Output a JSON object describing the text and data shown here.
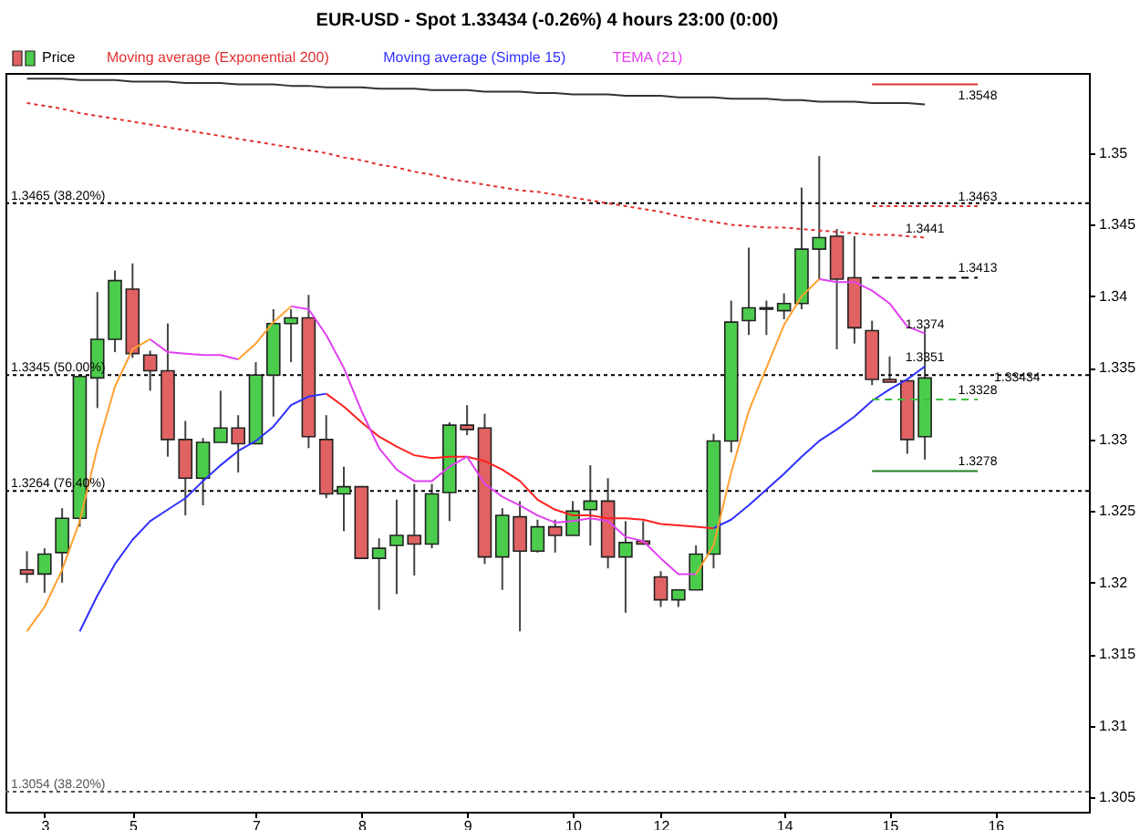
{
  "chart_data": {
    "type": "candlestick",
    "title": "EUR-USD - Spot    1.33434 (-0.26%)    4 hours  23:00 (0:00)",
    "categories": [
      null,
      "3",
      null,
      null,
      null,
      null,
      "5",
      null,
      null,
      null,
      null,
      null,
      null,
      "7",
      null,
      null,
      null,
      null,
      null,
      "8",
      null,
      null,
      null,
      null,
      null,
      "9",
      null,
      null,
      null,
      null,
      null,
      "10",
      null,
      null,
      null,
      null,
      "12",
      null,
      null,
      null,
      null,
      null,
      null,
      "14",
      null,
      null,
      null,
      null,
      null,
      "15",
      null,
      null,
      null,
      null,
      null,
      "16",
      null,
      null,
      null,
      null
    ],
    "ylim": [
      1.304,
      1.3556
    ],
    "yticks": [
      1.305,
      1.31,
      1.315,
      1.32,
      1.325,
      1.33,
      1.335,
      1.34,
      1.345,
      1.35
    ],
    "grid": false,
    "legend": "top left",
    "series": [
      {
        "name": "Price",
        "ohlc": [
          [
            1.3209,
            1.3222,
            1.32,
            1.3206
          ],
          [
            1.3206,
            1.3224,
            1.3193,
            1.322
          ],
          [
            1.3221,
            1.3252,
            1.32,
            1.3245
          ],
          [
            1.3245,
            1.3344,
            1.3239,
            1.3344
          ],
          [
            1.3343,
            1.3403,
            1.3322,
            1.337
          ],
          [
            1.337,
            1.3418,
            1.3361,
            1.3411
          ],
          [
            1.3405,
            1.3423,
            1.3357,
            1.336
          ],
          [
            1.3359,
            1.3362,
            1.3334,
            1.3348
          ],
          [
            1.3348,
            1.3381,
            1.3288,
            1.33
          ],
          [
            1.33,
            1.3313,
            1.3247,
            1.3273
          ],
          [
            1.3273,
            1.3301,
            1.3254,
            1.3298
          ],
          [
            1.3298,
            1.3334,
            1.3298,
            1.3308
          ],
          [
            1.3308,
            1.3317,
            1.3277,
            1.3297
          ],
          [
            1.3297,
            1.3354,
            1.3297,
            1.3345
          ],
          [
            1.3345,
            1.3391,
            1.3316,
            1.3381
          ],
          [
            1.3381,
            1.3391,
            1.3354,
            1.3385
          ],
          [
            1.3385,
            1.3401,
            1.3294,
            1.3302
          ],
          [
            1.33,
            1.3317,
            1.3259,
            1.3262
          ],
          [
            1.3262,
            1.3281,
            1.3236,
            1.3267
          ],
          [
            1.3267,
            1.3267,
            1.3217,
            1.3217
          ],
          [
            1.3217,
            1.3231,
            1.3181,
            1.3224
          ],
          [
            1.3226,
            1.3258,
            1.3192,
            1.3233
          ],
          [
            1.3233,
            1.3269,
            1.3205,
            1.3227
          ],
          [
            1.3227,
            1.3269,
            1.3224,
            1.3262
          ],
          [
            1.3263,
            1.3312,
            1.3243,
            1.331
          ],
          [
            1.331,
            1.3324,
            1.3303,
            1.3307
          ],
          [
            1.3308,
            1.3318,
            1.3213,
            1.3218
          ],
          [
            1.3218,
            1.3252,
            1.3195,
            1.3247
          ],
          [
            1.3246,
            1.3257,
            1.3166,
            1.3222
          ],
          [
            1.3222,
            1.3244,
            1.3221,
            1.3239
          ],
          [
            1.3239,
            1.3244,
            1.3221,
            1.3233
          ],
          [
            1.3233,
            1.3257,
            1.3233,
            1.325
          ],
          [
            1.3251,
            1.3282,
            1.3226,
            1.3257
          ],
          [
            1.3257,
            1.3273,
            1.321,
            1.3218
          ],
          [
            1.3218,
            1.3243,
            1.3179,
            1.3228
          ],
          [
            1.3229,
            1.3243,
            1.3227,
            1.3227
          ],
          [
            1.3204,
            1.3208,
            1.3183,
            1.3188
          ],
          [
            1.3188,
            1.3195,
            1.3183,
            1.3195
          ],
          [
            1.3195,
            1.3226,
            1.3195,
            1.322
          ],
          [
            1.322,
            1.3304,
            1.321,
            1.3299
          ],
          [
            1.3299,
            1.3397,
            1.3291,
            1.3382
          ],
          [
            1.3383,
            1.3434,
            1.3373,
            1.3392
          ],
          [
            1.3392,
            1.3397,
            1.3373,
            1.3391
          ],
          [
            1.339,
            1.3402,
            1.3384,
            1.3395
          ],
          [
            1.3395,
            1.3476,
            1.3391,
            1.3433
          ],
          [
            1.3433,
            1.3498,
            1.3412,
            1.3441
          ],
          [
            1.3442,
            1.3447,
            1.3363,
            1.3412
          ],
          [
            1.3413,
            1.3442,
            1.3367,
            1.3378
          ],
          [
            1.3376,
            1.3383,
            1.3338,
            1.3342
          ],
          [
            1.3342,
            1.3358,
            1.334,
            1.334
          ],
          [
            1.3341,
            1.3341,
            1.329,
            1.33
          ],
          [
            1.3302,
            1.3378,
            1.3286,
            1.3343
          ],
          null,
          null,
          null,
          null,
          null,
          null,
          null,
          null
        ],
        "colors": [
          "#e06262",
          "#4ccc4c",
          "#4ccc4c",
          "#4ccc4c",
          "#4ccc4c",
          "#4ccc4c",
          "#e06262",
          "#e06262",
          "#e06262",
          "#e06262",
          "#4ccc4c",
          "#4ccc4c",
          "#e06262",
          "#4ccc4c",
          "#4ccc4c",
          "#4ccc4c",
          "#e06262",
          "#e06262",
          "#4ccc4c",
          "#e06262",
          "#4ccc4c",
          "#4ccc4c",
          "#e06262",
          "#4ccc4c",
          "#4ccc4c",
          "#e06262",
          "#e06262",
          "#4ccc4c",
          "#e06262",
          "#4ccc4c",
          "#e06262",
          "#4ccc4c",
          "#4ccc4c",
          "#e06262",
          "#4ccc4c",
          "#e06262",
          "#e06262",
          "#4ccc4c",
          "#4ccc4c",
          "#4ccc4c",
          "#4ccc4c",
          "#4ccc4c",
          "#e06262",
          "#4ccc4c",
          "#4ccc4c",
          "#4ccc4c",
          "#e06262",
          "#e06262",
          "#e06262",
          "#e06262",
          "#e06262",
          "#4ccc4c",
          null,
          null,
          null,
          null,
          null,
          null,
          null,
          null
        ]
      },
      {
        "name": "Moving average (Exponential 200)",
        "type": "line",
        "color": "#e03030",
        "line_style": "dotted",
        "values": [
          1.3535,
          1.3533,
          1.3531,
          1.3528,
          1.3526,
          1.3524,
          1.3522,
          1.352,
          1.3518,
          1.3516,
          1.3514,
          1.3512,
          1.351,
          1.3508,
          1.3506,
          1.3504,
          1.3502,
          1.35,
          1.3497,
          1.3495,
          1.3492,
          1.349,
          1.3487,
          1.3485,
          1.3482,
          1.348,
          1.3478,
          1.3476,
          1.3474,
          1.3473,
          1.3471,
          1.3469,
          1.3467,
          1.3465,
          1.3463,
          1.3461,
          1.3459,
          1.3456,
          1.3454,
          1.3452,
          1.345,
          1.3449,
          1.3448,
          1.3448,
          1.3447,
          1.3446,
          1.3445,
          1.3444,
          1.3443,
          1.3443,
          1.3442,
          1.3441,
          null,
          null,
          null,
          null,
          null,
          null,
          null,
          null
        ]
      },
      {
        "name": "Moving average (Simple 15)",
        "type": "line",
        "color": "#3030ff",
        "values": [
          null,
          null,
          null,
          1.3166,
          1.3191,
          1.3213,
          1.323,
          1.3243,
          1.3251,
          1.3259,
          1.3271,
          1.3282,
          1.3292,
          1.3299,
          1.3309,
          1.3324,
          1.333,
          1.3332,
          null,
          null,
          null,
          null,
          null,
          null,
          null,
          null,
          null,
          null,
          null,
          null,
          null,
          null,
          null,
          null,
          null,
          null,
          null,
          null,
          null,
          1.3238,
          1.3244,
          1.3254,
          1.3265,
          1.3276,
          1.3288,
          1.3299,
          1.3307,
          1.3316,
          1.3327,
          1.3335,
          1.3342,
          1.3351,
          null,
          null,
          null,
          null,
          null,
          null,
          null,
          null
        ]
      },
      {
        "type": "line",
        "color": "#ff2020",
        "values": [
          null,
          null,
          null,
          null,
          null,
          null,
          null,
          null,
          null,
          null,
          null,
          null,
          null,
          null,
          null,
          null,
          null,
          1.3332,
          1.3323,
          1.3312,
          1.3302,
          1.3295,
          1.3289,
          1.3287,
          1.3288,
          1.3288,
          1.3285,
          1.3279,
          1.3271,
          1.3258,
          1.3251,
          1.3247,
          1.3247,
          1.3245,
          1.3245,
          1.3244,
          1.3241,
          1.324,
          1.3239,
          1.3238,
          null,
          null,
          null,
          null,
          null,
          null,
          null,
          null,
          null,
          null,
          null,
          null,
          null,
          null,
          null,
          null,
          null,
          null,
          null,
          null
        ]
      },
      {
        "name": "TEMA (21)",
        "type": "line",
        "color": "#e040f0",
        "values": [
          null,
          null,
          null,
          null,
          null,
          null,
          null,
          1.337,
          1.3361,
          1.336,
          1.3359,
          1.3359,
          1.3356,
          null,
          null,
          1.3393,
          1.3391,
          1.3373,
          1.335,
          1.332,
          1.3294,
          1.3279,
          1.3271,
          1.3271,
          1.3281,
          1.3288,
          1.3269,
          1.326,
          1.3254,
          1.3247,
          1.3242,
          1.3243,
          1.3245,
          1.3243,
          1.3232,
          1.3229,
          1.3217,
          1.3206,
          1.3206,
          null,
          null,
          null,
          null,
          null,
          null,
          1.3412,
          1.341,
          1.341,
          1.3404,
          1.3395,
          1.3379,
          1.3374,
          null,
          null,
          null,
          null,
          null,
          null,
          null,
          null
        ]
      },
      {
        "type": "line",
        "color": "#ffa030",
        "values": [
          1.3166,
          1.3183,
          1.3209,
          1.3243,
          1.3294,
          1.3337,
          1.3363,
          1.337,
          null,
          null,
          null,
          null,
          1.3356,
          1.3367,
          1.3382,
          1.3393,
          null,
          null,
          null,
          null,
          null,
          null,
          null,
          null,
          null,
          null,
          null,
          null,
          null,
          null,
          null,
          null,
          null,
          null,
          null,
          null,
          null,
          null,
          1.3206,
          1.3226,
          1.3277,
          1.332,
          1.335,
          1.338,
          1.34,
          1.3412,
          null,
          null,
          null,
          null,
          null,
          null,
          null,
          null,
          null,
          null,
          null,
          null,
          null,
          null
        ]
      },
      {
        "type": "line",
        "color": "#333333",
        "values": [
          1.3552,
          1.3552,
          1.3552,
          1.3551,
          1.3551,
          1.3551,
          1.355,
          1.355,
          1.355,
          1.3549,
          1.3549,
          1.3549,
          1.3548,
          1.3548,
          1.3548,
          1.3547,
          1.3547,
          1.3546,
          1.3546,
          1.3546,
          1.3545,
          1.3545,
          1.3545,
          1.3544,
          1.3544,
          1.3544,
          1.3543,
          1.3543,
          1.3543,
          1.3542,
          1.3542,
          1.3541,
          1.3541,
          1.3541,
          1.354,
          1.354,
          1.354,
          1.3539,
          1.3539,
          1.3539,
          1.3538,
          1.3538,
          1.3538,
          1.3537,
          1.3537,
          1.3536,
          1.3536,
          1.3536,
          1.3535,
          1.3535,
          1.3535,
          1.3534,
          null,
          null,
          null,
          null,
          null,
          null,
          null,
          null
        ]
      },
      {
        "type": "line",
        "color": "#e03030",
        "values": [
          null,
          null,
          null,
          null,
          null,
          null,
          null,
          null,
          null,
          null,
          null,
          null,
          null,
          null,
          null,
          null,
          null,
          null,
          null,
          null,
          null,
          null,
          null,
          null,
          null,
          null,
          null,
          null,
          null,
          null,
          null,
          null,
          null,
          null,
          null,
          null,
          null,
          null,
          null,
          null,
          null,
          null,
          null,
          null,
          null,
          null,
          null,
          null,
          1.3548,
          1.3548,
          1.3548,
          1.3548,
          1.3548,
          1.3548,
          1.3548,
          null,
          null,
          null,
          null,
          null
        ]
      },
      {
        "type": "line",
        "color": "#e03030",
        "line_style": "dotted",
        "values": [
          null,
          null,
          null,
          null,
          null,
          null,
          null,
          null,
          null,
          null,
          null,
          null,
          null,
          null,
          null,
          null,
          null,
          null,
          null,
          null,
          null,
          null,
          null,
          null,
          null,
          null,
          null,
          null,
          null,
          null,
          null,
          null,
          null,
          null,
          null,
          null,
          null,
          null,
          null,
          null,
          null,
          null,
          null,
          null,
          null,
          null,
          null,
          null,
          1.3463,
          1.3463,
          1.3463,
          1.3463,
          1.3463,
          1.3463,
          1.3463,
          null,
          null,
          null,
          null,
          null
        ]
      },
      {
        "type": "line",
        "color": "#000000",
        "line_style": "dashed",
        "values": [
          null,
          null,
          null,
          null,
          null,
          null,
          null,
          null,
          null,
          null,
          null,
          null,
          null,
          null,
          null,
          null,
          null,
          null,
          null,
          null,
          null,
          null,
          null,
          null,
          null,
          null,
          null,
          null,
          null,
          null,
          null,
          null,
          null,
          null,
          null,
          null,
          null,
          null,
          null,
          null,
          null,
          null,
          null,
          null,
          null,
          null,
          null,
          null,
          1.3413,
          1.3413,
          1.3413,
          1.3413,
          1.3413,
          1.3413,
          1.3413,
          null,
          null,
          null,
          null,
          null
        ]
      },
      {
        "type": "line",
        "color": "#40c040",
        "line_style": "dashed",
        "values": [
          null,
          null,
          null,
          null,
          null,
          null,
          null,
          null,
          null,
          null,
          null,
          null,
          null,
          null,
          null,
          null,
          null,
          null,
          null,
          null,
          null,
          null,
          null,
          null,
          null,
          null,
          null,
          null,
          null,
          null,
          null,
          null,
          null,
          null,
          null,
          null,
          null,
          null,
          null,
          null,
          null,
          null,
          null,
          null,
          null,
          null,
          null,
          null,
          1.3328,
          1.3328,
          1.3328,
          1.3328,
          1.3328,
          1.3328,
          1.3328,
          null,
          null,
          null,
          null,
          null
        ]
      },
      {
        "type": "line",
        "color": "#208020",
        "values": [
          null,
          null,
          null,
          null,
          null,
          null,
          null,
          null,
          null,
          null,
          null,
          null,
          null,
          null,
          null,
          null,
          null,
          null,
          null,
          null,
          null,
          null,
          null,
          null,
          null,
          null,
          null,
          null,
          null,
          null,
          null,
          null,
          null,
          null,
          null,
          null,
          null,
          null,
          null,
          null,
          null,
          null,
          null,
          null,
          null,
          null,
          null,
          null,
          1.3278,
          1.3278,
          1.3278,
          1.3278,
          1.3278,
          1.3278,
          1.3278,
          null,
          null,
          null,
          null,
          null
        ]
      }
    ],
    "ref_lines": [
      {
        "axis": "y",
        "value": 1.3465,
        "label": "1.3465 (38.20%)",
        "color": "#000000",
        "line_style": "dotted"
      },
      {
        "axis": "y",
        "value": 1.3345,
        "label": "1.3345 (50.00%)",
        "color": "#000000",
        "line_style": "dotted"
      },
      {
        "axis": "y",
        "value": 1.3264,
        "label": "1.3264 (76.40%)",
        "color": "#000000",
        "line_style": "dotted"
      },
      {
        "axis": "y",
        "value": 1.3054,
        "label": "1.3054 (38.20%)",
        "color": "#555555",
        "line_style": "dotted"
      }
    ],
    "annotations": [
      {
        "text": "1.3548",
        "y": 1.3548
      },
      {
        "text": "1.3463",
        "y": 1.3463
      },
      {
        "text": "1.3441",
        "y": 1.3441
      },
      {
        "text": "1.3413",
        "y": 1.3413
      },
      {
        "text": "1.3374",
        "y": 1.3374
      },
      {
        "text": "1.3351",
        "y": 1.3351
      },
      {
        "text": "1.33434",
        "y": 1.33434
      },
      {
        "text": "1.3328",
        "y": 1.3328
      },
      {
        "text": "1.3278",
        "y": 1.3278
      }
    ]
  }
}
